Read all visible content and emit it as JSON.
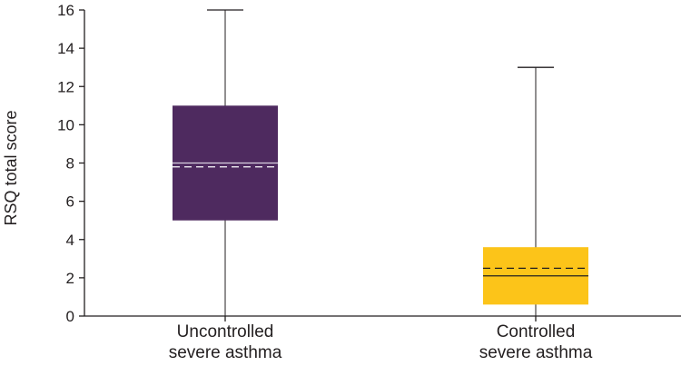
{
  "chart_data": {
    "type": "boxplot",
    "ylabel": "RSQ total score",
    "ylim": [
      0,
      16
    ],
    "yticks": [
      0,
      2,
      4,
      6,
      8,
      10,
      12,
      14,
      16
    ],
    "categories": [
      {
        "line1": "Uncontrolled",
        "line2": "severe asthma"
      },
      {
        "line1": "Controlled",
        "line2": "severe asthma"
      }
    ],
    "boxes": [
      {
        "min": 0,
        "q1": 5,
        "median": 8,
        "mean": 7.8,
        "q3": 11,
        "max": 16,
        "fill": "#4e2a5f",
        "median_color": "#d9d0e0",
        "mean_color": "#ffffff"
      },
      {
        "min": 0,
        "q1": 0.6,
        "median": 2.1,
        "mean": 2.5,
        "q3": 3.6,
        "max": 13,
        "fill": "#fcc419",
        "median_color": "#231f20",
        "mean_color": "#231f20"
      }
    ],
    "grid": false,
    "legend": "none",
    "notes": {
      "solid_line": "median",
      "dashed_line": "mean"
    }
  }
}
